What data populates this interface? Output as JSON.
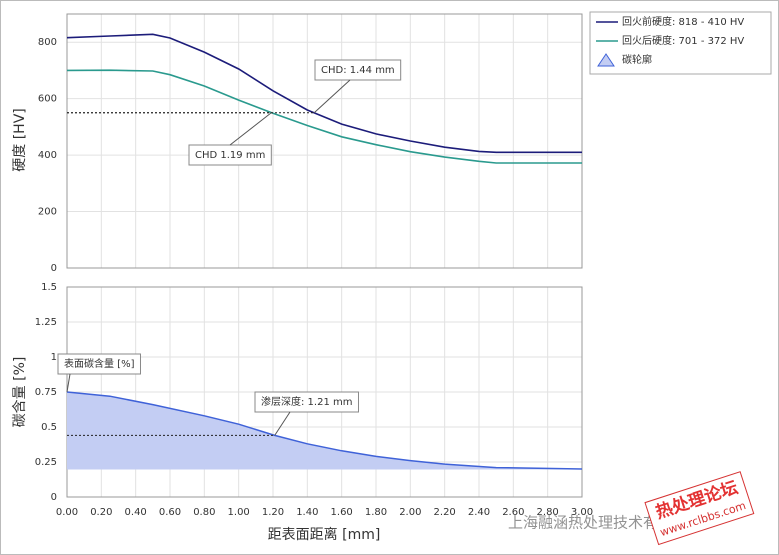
{
  "chart_data": [
    {
      "type": "line",
      "ylabel": "硬度 [HV]",
      "x": [
        0,
        0.25,
        0.5,
        0.6,
        0.8,
        1.0,
        1.2,
        1.4,
        1.6,
        1.8,
        2.0,
        2.2,
        2.4,
        2.5,
        3.0
      ],
      "series": [
        {
          "name": "回火前硬度: 818 - 410 HV",
          "color": "#1c1c7a",
          "values": [
            816,
            822,
            828,
            815,
            765,
            705,
            628,
            560,
            510,
            475,
            450,
            428,
            413,
            410,
            410
          ]
        },
        {
          "name": "回火后硬度: 701 - 372 HV",
          "color": "#2a9a8e",
          "values": [
            700,
            701,
            698,
            685,
            645,
            595,
            548,
            505,
            465,
            437,
            412,
            393,
            378,
            372,
            372
          ]
        }
      ],
      "xlim": [
        0,
        3
      ],
      "xticks": [
        0,
        0.2,
        0.4,
        0.6,
        0.8,
        1,
        1.2,
        1.4,
        1.6,
        1.8,
        2,
        2.2,
        2.4,
        2.6,
        2.8,
        3
      ],
      "ylim": [
        0,
        900
      ],
      "yticks": [
        0,
        200,
        400,
        600,
        800
      ],
      "grid": true,
      "annotations": [
        {
          "text": "CHD: 1.44 mm",
          "x": 1.44,
          "y": 550
        },
        {
          "text": "CHD 1.19 mm",
          "x": 1.19,
          "y": 550
        }
      ]
    },
    {
      "type": "area",
      "ylabel": "碳含量 [%]",
      "xlabel": "距表面距离 [mm]",
      "x": [
        0,
        0.25,
        0.5,
        0.8,
        1.0,
        1.21,
        1.4,
        1.6,
        1.8,
        2.0,
        2.2,
        2.5,
        3.0
      ],
      "series": [
        {
          "name": "碳轮廓",
          "color": "#3f62d8",
          "fill": "#c3cdf3",
          "values": [
            0.75,
            0.72,
            0.66,
            0.58,
            0.52,
            0.44,
            0.38,
            0.33,
            0.29,
            0.26,
            0.235,
            0.21,
            0.2
          ],
          "base": 0.2
        }
      ],
      "xlim": [
        0,
        3
      ],
      "xticks": [
        {
          "value": 0,
          "label": "0.00"
        },
        {
          "value": 0.2,
          "label": "0.20"
        },
        {
          "value": 0.4,
          "label": "0.40"
        },
        {
          "value": 0.6,
          "label": "0.60"
        },
        {
          "value": 0.8,
          "label": "0.80"
        },
        {
          "value": 1,
          "label": "1.00"
        },
        {
          "value": 1.2,
          "label": "1.20"
        },
        {
          "value": 1.4,
          "label": "1.40"
        },
        {
          "value": 1.6,
          "label": "1.60"
        },
        {
          "value": 1.8,
          "label": "1.80"
        },
        {
          "value": 2,
          "label": "2.00"
        },
        {
          "value": 2.2,
          "label": "2.20"
        },
        {
          "value": 2.4,
          "label": "2.40"
        },
        {
          "value": 2.6,
          "label": "2.60"
        },
        {
          "value": 2.8,
          "label": "2.80"
        },
        {
          "value": 3,
          "label": "3.00"
        }
      ],
      "ylim": [
        0,
        1.5
      ],
      "yticks": [
        0,
        0.25,
        0.5,
        0.75,
        1,
        1.25,
        1.5
      ],
      "grid": true,
      "annotations": [
        {
          "text": "表面碳含量 [%]",
          "x": 0,
          "y": 0.75
        },
        {
          "text": "渗层深度: 1.21 mm",
          "x": 1.21,
          "y": 0.44
        }
      ]
    }
  ],
  "watermark": {
    "company": "上海融涵热处理技术有限公司",
    "forum": "热处理论坛",
    "url": "www.rclbbs.com"
  }
}
